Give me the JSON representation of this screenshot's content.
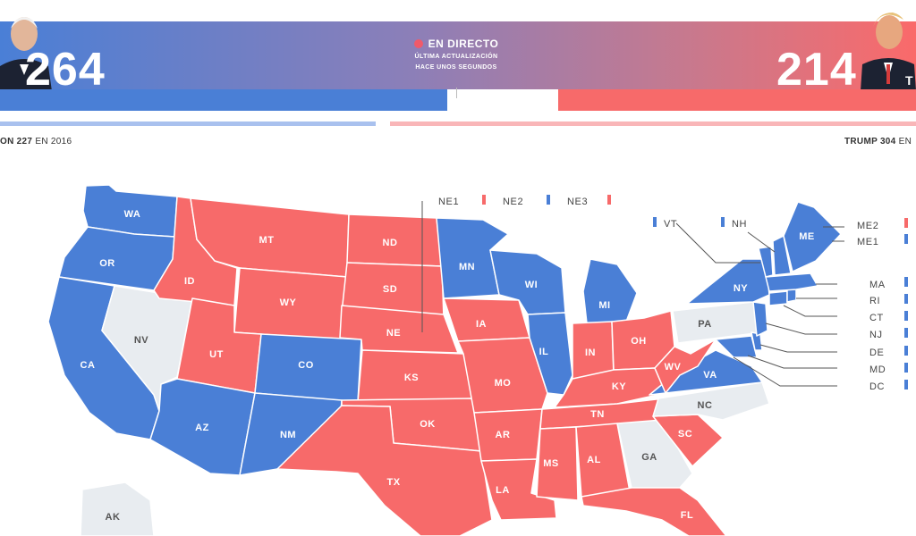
{
  "header": {
    "dem_score": "264",
    "rep_score": "214",
    "rep_initial": "T",
    "live_label": "EN DIRECTO",
    "live_sub_1": "ÚLTIMA ACTUALIZACIÓN",
    "live_sub_2": "HACE UNOS SEGUNDOS"
  },
  "history": {
    "dem_name_votes": "ON 227",
    "dem_suffix": "EN 2016",
    "rep_name_votes": "TRUMP 304",
    "rep_suffix": "EN"
  },
  "colors": {
    "dem": "#4a7fd6",
    "rep": "#f76a6a",
    "undecided": "#e8ecf0"
  },
  "states": {
    "wa": "WA",
    "or": "OR",
    "ca": "CA",
    "nv": "NV",
    "id": "ID",
    "mt": "MT",
    "wy": "WY",
    "ut": "UT",
    "az": "AZ",
    "co": "CO",
    "nm": "NM",
    "nd": "ND",
    "sd": "SD",
    "ne": "NE",
    "ks": "KS",
    "ok": "OK",
    "tx": "TX",
    "mn": "MN",
    "ia": "IA",
    "mo": "MO",
    "ar": "AR",
    "la": "LA",
    "wi": "WI",
    "il": "IL",
    "mi": "MI",
    "in": "IN",
    "oh": "OH",
    "ky": "KY",
    "tn": "TN",
    "ms": "MS",
    "al": "AL",
    "ga": "GA",
    "fl": "FL",
    "sc": "SC",
    "nc": "NC",
    "va": "VA",
    "wv": "WV",
    "pa": "PA",
    "ny": "NY",
    "me": "ME",
    "ak": "AK"
  },
  "districts": {
    "ne1": "NE1",
    "ne2": "NE2",
    "ne3": "NE3",
    "me2": "ME2",
    "me1": "ME1"
  },
  "small_states": {
    "vt": "VT",
    "nh": "NH",
    "ma": "MA",
    "ri": "RI",
    "ct": "CT",
    "nj": "NJ",
    "de": "DE",
    "md": "MD",
    "dc": "DC"
  }
}
